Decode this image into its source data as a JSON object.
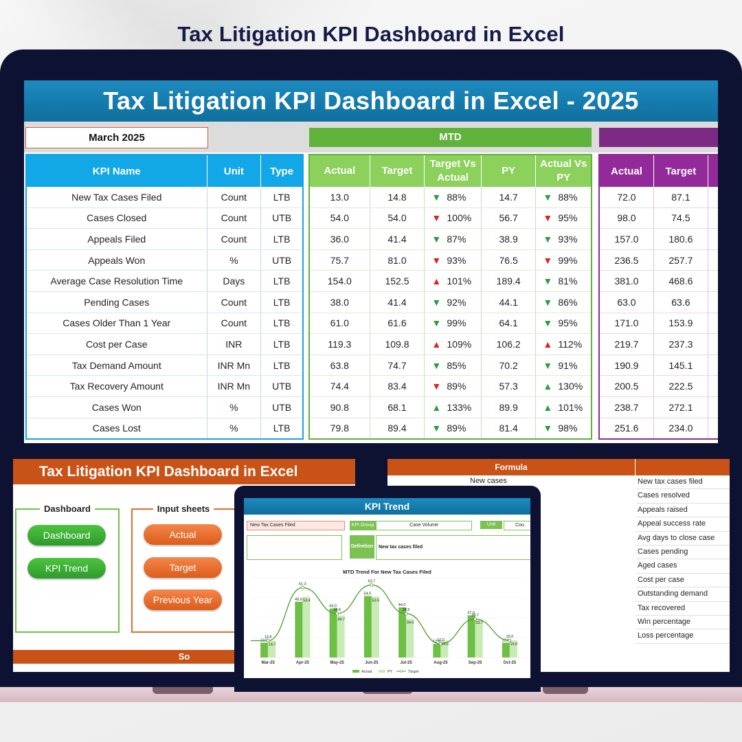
{
  "page_title": "Tax Litigation KPI Dashboard in Excel",
  "main": {
    "banner": "Tax Litigation KPI Dashboard in Excel - 2025",
    "month": "March 2025",
    "mtd_label": "MTD",
    "kpi_headers": [
      "KPI Name",
      "Unit",
      "Type"
    ],
    "mtd_headers": [
      "Actual",
      "Target",
      "Target Vs Actual",
      "PY",
      "Actual Vs PY"
    ],
    "ytd_headers": [
      "Actual",
      "Target"
    ],
    "rows": [
      {
        "kpi": "New Tax Cases Filed",
        "unit": "Count",
        "type": "LTB",
        "actual": "13.0",
        "target": "14.8",
        "tva_dir": "down-green",
        "tva": "88%",
        "py": "14.7",
        "avp_dir": "down-green",
        "avp": "88%",
        "ytd_actual": "72.0",
        "ytd_target": "87.1"
      },
      {
        "kpi": "Cases Closed",
        "unit": "Count",
        "type": "UTB",
        "actual": "54.0",
        "target": "54.0",
        "tva_dir": "down-red",
        "tva": "100%",
        "py": "56.7",
        "avp_dir": "down-red",
        "avp": "95%",
        "ytd_actual": "98.0",
        "ytd_target": "74.5"
      },
      {
        "kpi": "Appeals Filed",
        "unit": "Count",
        "type": "LTB",
        "actual": "36.0",
        "target": "41.4",
        "tva_dir": "down-green",
        "tva": "87%",
        "py": "38.9",
        "avp_dir": "down-green",
        "avp": "93%",
        "ytd_actual": "157.0",
        "ytd_target": "180.6"
      },
      {
        "kpi": "Appeals Won",
        "unit": "%",
        "type": "UTB",
        "actual": "75.7",
        "target": "81.0",
        "tva_dir": "down-red",
        "tva": "93%",
        "py": "76.5",
        "avp_dir": "down-red",
        "avp": "99%",
        "ytd_actual": "236.5",
        "ytd_target": "257.7"
      },
      {
        "kpi": "Average Case Resolution Time",
        "unit": "Days",
        "type": "LTB",
        "actual": "154.0",
        "target": "152.5",
        "tva_dir": "up-red",
        "tva": "101%",
        "py": "189.4",
        "avp_dir": "down-green",
        "avp": "81%",
        "ytd_actual": "381.0",
        "ytd_target": "468.6"
      },
      {
        "kpi": "Pending Cases",
        "unit": "Count",
        "type": "LTB",
        "actual": "38.0",
        "target": "41.4",
        "tva_dir": "down-green",
        "tva": "92%",
        "py": "44.1",
        "avp_dir": "down-green",
        "avp": "86%",
        "ytd_actual": "63.0",
        "ytd_target": "63.6"
      },
      {
        "kpi": "Cases Older Than 1 Year",
        "unit": "Count",
        "type": "LTB",
        "actual": "61.0",
        "target": "61.6",
        "tva_dir": "down-green",
        "tva": "99%",
        "py": "64.1",
        "avp_dir": "down-green",
        "avp": "95%",
        "ytd_actual": "171.0",
        "ytd_target": "153.9"
      },
      {
        "kpi": "Cost per Case",
        "unit": "INR",
        "type": "LTB",
        "actual": "119.3",
        "target": "109.8",
        "tva_dir": "up-red",
        "tva": "109%",
        "py": "106.2",
        "avp_dir": "up-red",
        "avp": "112%",
        "ytd_actual": "219.7",
        "ytd_target": "237.3"
      },
      {
        "kpi": "Tax Demand Amount",
        "unit": "INR Mn",
        "type": "LTB",
        "actual": "63.8",
        "target": "74.7",
        "tva_dir": "down-green",
        "tva": "85%",
        "py": "70.2",
        "avp_dir": "down-green",
        "avp": "91%",
        "ytd_actual": "190.9",
        "ytd_target": "145.1"
      },
      {
        "kpi": "Tax Recovery Amount",
        "unit": "INR Mn",
        "type": "UTB",
        "actual": "74.4",
        "target": "83.4",
        "tva_dir": "down-red",
        "tva": "89%",
        "py": "57.3",
        "avp_dir": "up-green",
        "avp": "130%",
        "ytd_actual": "200.5",
        "ytd_target": "222.5"
      },
      {
        "kpi": "Cases Won",
        "unit": "%",
        "type": "UTB",
        "actual": "90.8",
        "target": "68.1",
        "tva_dir": "up-green",
        "tva": "133%",
        "py": "89.9",
        "avp_dir": "up-green",
        "avp": "101%",
        "ytd_actual": "238.7",
        "ytd_target": "272.1"
      },
      {
        "kpi": "Cases Lost",
        "unit": "%",
        "type": "LTB",
        "actual": "79.8",
        "target": "89.4",
        "tva_dir": "down-green",
        "tva": "89%",
        "py": "81.4",
        "avp_dir": "down-green",
        "avp": "98%",
        "ytd_actual": "251.6",
        "ytd_target": "234.0"
      }
    ]
  },
  "left_tablet": {
    "title": "Tax Litigation KPI Dashboard in Excel",
    "group_dashboard": "Dashboard",
    "group_inputs": "Input sheets",
    "btn_dashboard": "Dashboard",
    "btn_kpi_trend": "KPI Trend",
    "btn_actual": "Actual",
    "btn_target": "Target",
    "btn_previous_year": "Previous Year",
    "footer": "So"
  },
  "right_tablet": {
    "formula_header": "Formula",
    "left_text": "New cases",
    "definitions": [
      "New tax cases filed",
      "Cases resolved",
      "Appeals raised",
      "Appeal success rate",
      "Avg days to close case",
      "Cases pending",
      "Aged cases",
      "Cost per case",
      "Outstanding demand",
      "Tax recovered",
      "Win percentage",
      "Loss percentage"
    ]
  },
  "center_tablet": {
    "title": "KPI Trend",
    "selected_kpi": "New Tax Cases Filed",
    "kpi_group_label": "KPI Group",
    "kpi_group_value": "Case Volume",
    "unit_label": "Unit",
    "unit_value": "Cou",
    "definition_label": "Definition",
    "definition_value": "New tax cases filed"
  },
  "chart_data": {
    "type": "bar",
    "title": "MTD Trend For New Tax Cases Filed",
    "categories": [
      "Mar-25",
      "Apr-25",
      "May-25",
      "Jun-25",
      "Jul-25",
      "Aug-25",
      "Sep-25",
      "Oct-25"
    ],
    "series": [
      {
        "name": "Actual",
        "type": "bar",
        "values": [
          13.0,
          49.0,
          43.0,
          54.0,
          44.0,
          12.0,
          37.0,
          13.0
        ]
      },
      {
        "name": "PY",
        "type": "bar",
        "values": [
          14.7,
          53.4,
          36.7,
          53.5,
          34.0,
          15.0,
          33.7,
          15.0
        ]
      },
      {
        "name": "Target",
        "type": "line",
        "values": [
          14.8,
          61.3,
          38.6,
          63.7,
          38.5,
          12.0,
          33.7,
          15.0
        ]
      }
    ],
    "data_labels": [
      [
        "13.0",
        "14.8",
        "14.7"
      ],
      [
        "49.0",
        "61.3",
        "53.4"
      ],
      [
        "43.0",
        "38.6",
        "36.7"
      ],
      [
        "54.0",
        "63.7",
        "53.5"
      ],
      [
        "44.0",
        "38.5",
        "34.0"
      ],
      [
        "12.0",
        "12.0",
        "15.0"
      ],
      [
        "37.0",
        "33.7",
        "33.7"
      ],
      [
        "13.0",
        "15.0",
        "15.0"
      ]
    ],
    "legend": [
      "Actual",
      "PY",
      "Target"
    ],
    "legend_position": "bottom",
    "colors": {
      "Actual": "#6dbf45",
      "PY": "#c8eab4",
      "Target": "#4a9d2c"
    }
  }
}
